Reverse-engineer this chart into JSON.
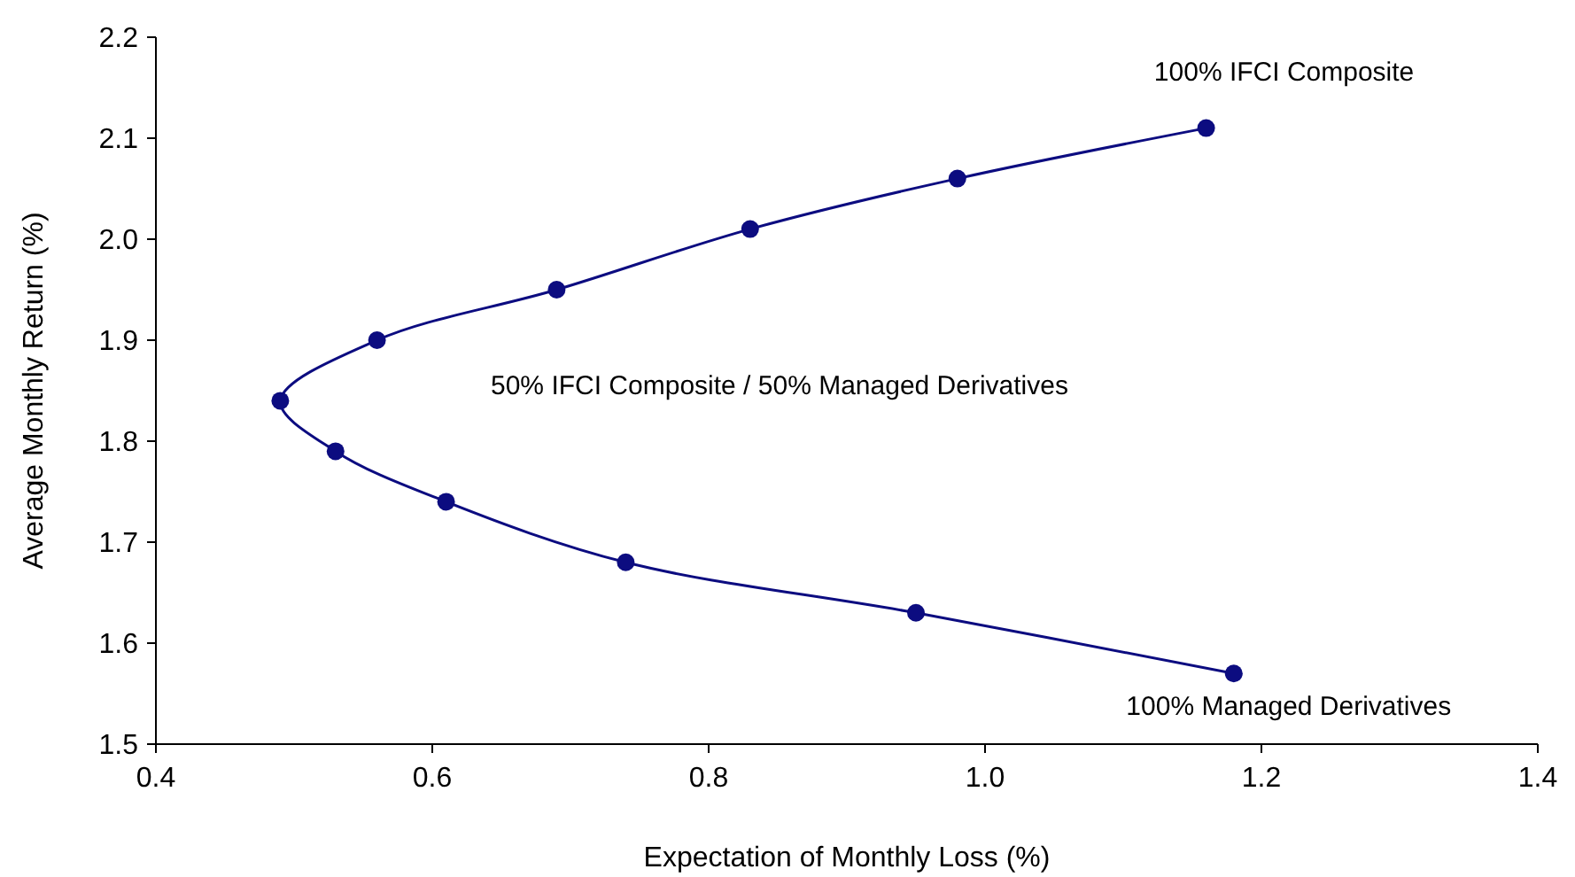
{
  "chart_data": {
    "type": "line",
    "xlabel": "Expectation of Monthly Loss (%)",
    "ylabel": "Average Monthly Return (%)",
    "x": [
      1.16,
      0.98,
      0.83,
      0.69,
      0.56,
      0.49,
      0.53,
      0.61,
      0.74,
      0.95,
      1.18
    ],
    "series": [
      {
        "color": "#0c0c80",
        "values": [
          2.11,
          2.06,
          2.01,
          1.95,
          1.9,
          1.84,
          1.79,
          1.74,
          1.68,
          1.63,
          1.57
        ]
      }
    ],
    "xlim": [
      0.4,
      1.4
    ],
    "xticks": [
      {
        "value": 0.4,
        "label": "0.4"
      },
      {
        "value": 0.6,
        "label": "0.6"
      },
      {
        "value": 0.8,
        "label": "0.8"
      },
      {
        "value": 1.0,
        "label": "1.0"
      },
      {
        "value": 1.2,
        "label": "1.2"
      },
      {
        "value": 1.4,
        "label": "1.4"
      }
    ],
    "ylim": [
      1.5,
      2.2
    ],
    "yticks": [
      {
        "value": 1.5,
        "label": "1.5"
      },
      {
        "value": 1.6,
        "label": "1.6"
      },
      {
        "value": 1.7,
        "label": "1.7"
      },
      {
        "value": 1.8,
        "label": "1.8"
      },
      {
        "value": 1.9,
        "label": "1.9"
      },
      {
        "value": 2.0,
        "label": "2.0"
      },
      {
        "value": 2.1,
        "label": "2.1"
      },
      {
        "value": 2.2,
        "label": "2.2"
      }
    ],
    "marker": "circle",
    "grid": false,
    "annotations": [
      {
        "text": "100% IFCI Composite",
        "x": 1.16,
        "y": 2.11
      },
      "50% IFCI Composite / 50% Managed Derivatives",
      {
        "text": "100% Managed Derivatives",
        "x": 1.18,
        "y": 1.57
      }
    ]
  }
}
